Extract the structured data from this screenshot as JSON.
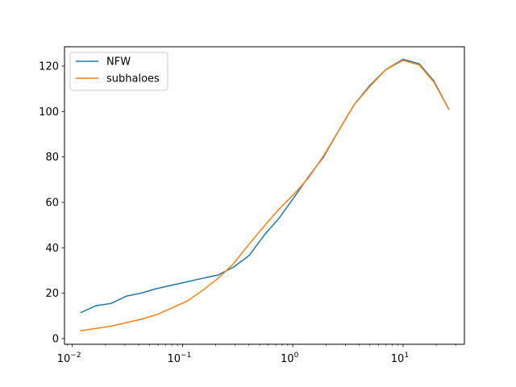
{
  "chart_data": {
    "type": "line",
    "xscale": "log",
    "xlim": [
      0.0085,
      36
    ],
    "ylim": [
      -2.5,
      128.5
    ],
    "x_ticks": [
      {
        "value": 0.01,
        "base": "10",
        "exp": "−2"
      },
      {
        "value": 0.1,
        "base": "10",
        "exp": "−1"
      },
      {
        "value": 1,
        "base": "10",
        "exp": "0"
      },
      {
        "value": 10,
        "base": "10",
        "exp": "1"
      }
    ],
    "y_ticks": [
      "0",
      "20",
      "40",
      "60",
      "80",
      "100",
      "120"
    ],
    "grid": false,
    "legend_position": "top-left",
    "series": [
      {
        "name": "NFW",
        "color": "#1f77b4",
        "x": [
          0.012,
          0.0165,
          0.0225,
          0.031,
          0.042,
          0.058,
          0.08,
          0.11,
          0.15,
          0.21,
          0.29,
          0.4,
          0.55,
          0.75,
          1.02,
          1.4,
          1.9,
          2.6,
          3.6,
          5.0,
          7.0,
          10.0,
          14.0,
          19.0,
          26.0
        ],
        "y": [
          11.5,
          14.5,
          15.5,
          18.7,
          20.0,
          22.0,
          23.5,
          25.0,
          26.5,
          28.0,
          31.5,
          36.5,
          45.5,
          53.0,
          62.0,
          71.5,
          80.0,
          91.5,
          103.0,
          111.5,
          118.5,
          123.0,
          121.0,
          113.5,
          101.0
        ]
      },
      {
        "name": "subhaloes",
        "color": "#ff7f0e",
        "x": [
          0.012,
          0.0165,
          0.0225,
          0.031,
          0.042,
          0.058,
          0.08,
          0.11,
          0.15,
          0.21,
          0.29,
          0.4,
          0.55,
          0.75,
          1.02,
          1.4,
          1.9,
          2.6,
          3.6,
          5.0,
          7.0,
          10.0,
          14.0,
          19.0,
          26.0
        ],
        "y": [
          3.5,
          4.5,
          5.5,
          7.0,
          8.5,
          10.5,
          13.5,
          16.5,
          21.0,
          26.5,
          33.0,
          41.5,
          49.5,
          57.0,
          63.5,
          71.0,
          80.5,
          91.5,
          103.0,
          111.0,
          118.5,
          122.5,
          120.5,
          113.0,
          101.0
        ]
      }
    ]
  }
}
